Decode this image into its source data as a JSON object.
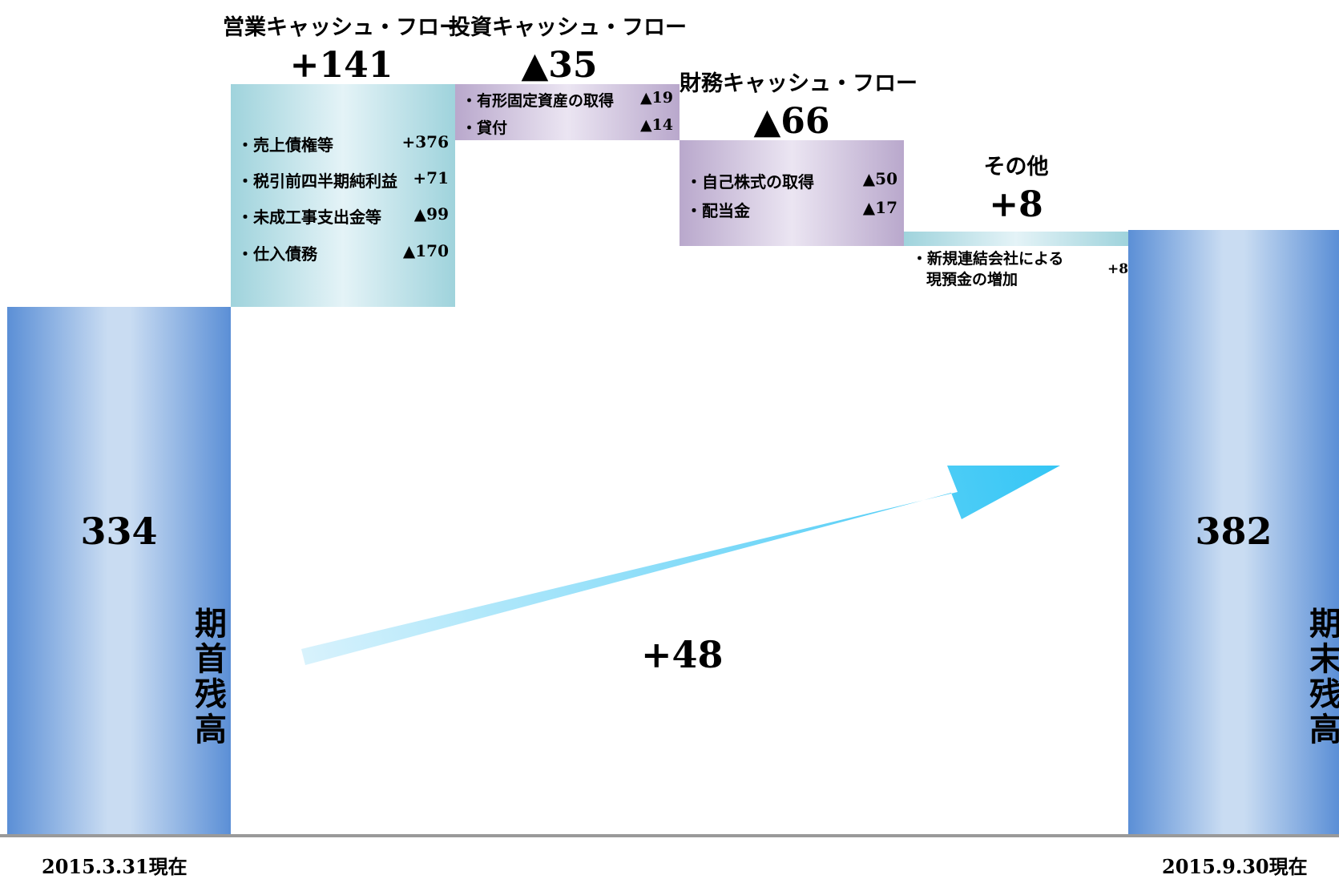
{
  "chart_data": {
    "type": "waterfall",
    "start": {
      "value": "334",
      "label": "期首残高",
      "date": "2015.3.31現在"
    },
    "end": {
      "value": "382",
      "label": "期末残高",
      "date": "2015.9.30現在"
    },
    "net_change": "+48",
    "steps": [
      {
        "title": "営業キャッシュ・フロー",
        "value": "+141",
        "items": [
          {
            "label": "・売上債権等",
            "value": "+376"
          },
          {
            "label": "・税引前四半期純利益",
            "value": "+71"
          },
          {
            "label": "・未成工事支出金等",
            "value": "▲99"
          },
          {
            "label": "・仕入債務",
            "value": "▲170"
          }
        ]
      },
      {
        "title": "投資キャッシュ・フロー",
        "value": "▲35",
        "items": [
          {
            "label": "・有形固定資産の取得",
            "value": "▲19"
          },
          {
            "label": "・貸付",
            "value": "▲14"
          }
        ]
      },
      {
        "title": "財務キャッシュ・フロー",
        "value": "▲66",
        "items": [
          {
            "label": "・自己株式の取得",
            "value": "▲50"
          },
          {
            "label": "・配当金",
            "value": "▲17"
          }
        ]
      },
      {
        "title": "その他",
        "value": "+8",
        "items": [
          {
            "label_line1": "・新規連結会社による",
            "label_line2": "現預金の増加",
            "value": "+8"
          }
        ]
      }
    ],
    "numeric": {
      "start": 334,
      "operating": 141,
      "investing": -35,
      "financing": -66,
      "other": 8,
      "end": 382
    }
  },
  "colors": {
    "blue": "#5b8fd6",
    "teal": "#9fd3dc",
    "purple": "#b9a8cc",
    "arrow": "#3cc8f5"
  }
}
